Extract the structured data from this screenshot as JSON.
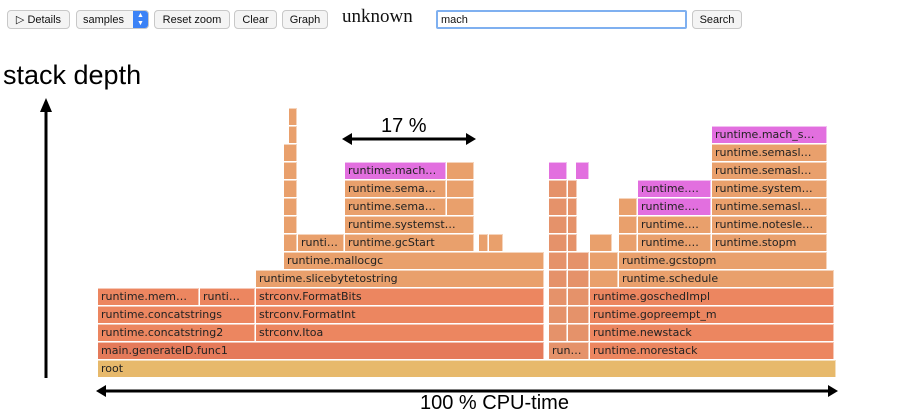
{
  "toolbar": {
    "details_label": "▷ Details",
    "sample_type": "samples",
    "reset_zoom_label": "Reset zoom",
    "clear_label": "Clear",
    "graph_label": "Graph",
    "title": "unknown",
    "search_value": "mach",
    "search_label": "Search"
  },
  "annotations": {
    "y_axis": "stack depth",
    "x_axis": "100 % CPU-time",
    "highlight": "17 %"
  },
  "colors": {
    "match": "#e26fdf",
    "frame": "#e9a06c",
    "root": "#e7b96b"
  },
  "frames": {
    "root": "root",
    "main_func1": "main.generateID.func1",
    "concatstring2": "runtime.concatstring2",
    "concatstrings": "runtime.concatstrings",
    "runtime_mem": "runtime.mem…",
    "runtime_i": "runti…",
    "strconv_itoa": "strconv.Itoa",
    "strconv_formatint": "strconv.FormatInt",
    "strconv_formatbits": "strconv.FormatBits",
    "slicebytetostring": "runtime.slicebytetostring",
    "mallocgc": "runtime.mallocgc",
    "runti_small": "runti…",
    "gcstart": "runtime.gcStart",
    "systemst": "runtime.systemst…",
    "sema1": "runtime.sema…",
    "sema2": "runtime.sema…",
    "mach1": "runtime.mach…",
    "run_small": "run…",
    "morestack": "runtime.morestack",
    "newstack": "runtime.newstack",
    "gopreempt": "runtime.gopreempt_m",
    "goschedimpl": "runtime.goschedImpl",
    "schedule": "runtime.schedule",
    "gcstopm": "runtime.gcstopm",
    "r_a1": "runtime.…",
    "r_a2": "runtime.…",
    "r_a3": "runtime.…",
    "stopm": "runtime.stopm",
    "notesle": "runtime.notesle…",
    "semasl1": "runtime.semasl…",
    "system2": "runtime.system…",
    "semasl2": "runtime.semasl…",
    "semasl3": "runtime.semasl…",
    "mach_s": "runtime.mach_s…"
  }
}
